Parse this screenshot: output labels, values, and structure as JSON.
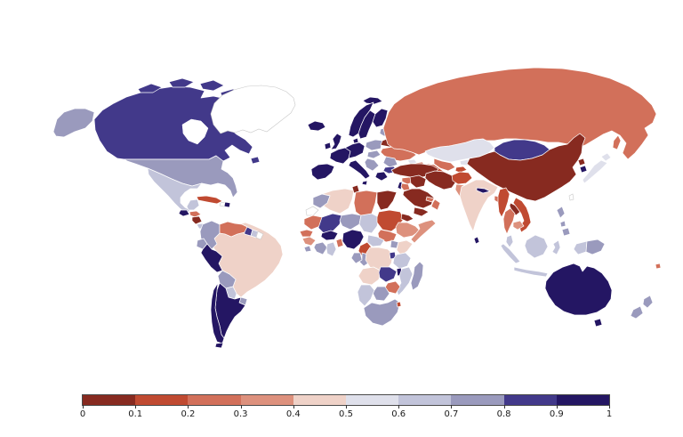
{
  "chart_data": {
    "type": "choropleth",
    "title": "",
    "description": "World map choropleth, values 0-1, diverging red-to-purple discrete scale, 10 bins, white = no data",
    "legend_position": "bottom",
    "no_data_color": "#ffffff",
    "colorbar": {
      "orientation": "horizontal",
      "ticks": [
        "0",
        "0.1",
        "0.2",
        "0.3",
        "0.4",
        "0.5",
        "0.6",
        "0.7",
        "0.8",
        "0.9",
        "1"
      ],
      "range": [
        0,
        1
      ],
      "bin_colors": [
        "#872a20",
        "#c04a31",
        "#d2705a",
        "#dd917d",
        "#efd2c8",
        "#dfe0eb",
        "#c2c4da",
        "#9a9abd",
        "#42398a",
        "#241663"
      ]
    },
    "regions": {
      "canada": {
        "name": "Canada",
        "value": 0.85
      },
      "usa": {
        "name": "United States",
        "value": 0.75
      },
      "greenland": {
        "name": "Greenland",
        "value": null
      },
      "mexico": {
        "name": "Mexico",
        "value": 0.65
      },
      "guatemala": {
        "name": "Guatemala",
        "value": 0.95
      },
      "honduras": {
        "name": "Honduras",
        "value": 0.25
      },
      "nicaragua": {
        "name": "Nicaragua",
        "value": 0.05
      },
      "costa_rica": {
        "name": "Costa Rica",
        "value": 0.65
      },
      "panama": {
        "name": "Panama",
        "value": 0.75
      },
      "cuba": {
        "name": "Cuba",
        "value": 0.15
      },
      "haiti": {
        "name": "Haiti",
        "value": null
      },
      "dominican_republic": {
        "name": "Dominican Republic",
        "value": 0.95
      },
      "colombia": {
        "name": "Colombia",
        "value": 0.75
      },
      "venezuela": {
        "name": "Venezuela",
        "value": 0.25
      },
      "guyana": {
        "name": "Guyana",
        "value": 0.85
      },
      "suriname": {
        "name": "Suriname",
        "value": 0.65
      },
      "french_guiana": {
        "name": "French Guiana",
        "value": null
      },
      "ecuador": {
        "name": "Ecuador",
        "value": 0.75
      },
      "peru": {
        "name": "Peru",
        "value": 0.95
      },
      "brazil": {
        "name": "Brazil",
        "value": 0.45
      },
      "bolivia": {
        "name": "Bolivia",
        "value": 0.75
      },
      "paraguay": {
        "name": "Paraguay",
        "value": 0.65
      },
      "uruguay": {
        "name": "Uruguay",
        "value": 0.75
      },
      "chile": {
        "name": "Chile",
        "value": 0.95
      },
      "argentina": {
        "name": "Argentina",
        "value": 0.95
      },
      "iceland": {
        "name": "Iceland",
        "value": 0.95
      },
      "svalbard": {
        "name": "Svalbard",
        "value": 0.95
      },
      "norway": {
        "name": "Norway",
        "value": 0.95
      },
      "sweden": {
        "name": "Sweden",
        "value": 0.95
      },
      "finland": {
        "name": "Finland",
        "value": 0.95
      },
      "denmark": {
        "name": "Denmark",
        "value": 0.95
      },
      "uk": {
        "name": "United Kingdom",
        "value": 0.95
      },
      "ireland": {
        "name": "Ireland",
        "value": 0.95
      },
      "france": {
        "name": "France",
        "value": 0.95
      },
      "iberia": {
        "name": "Spain & Portugal",
        "value": 0.95
      },
      "germany_central": {
        "name": "Germany & Central Europe",
        "value": 0.95
      },
      "italy": {
        "name": "Italy",
        "value": 0.95
      },
      "poland": {
        "name": "Poland",
        "value": 0.75
      },
      "baltics": {
        "name": "Baltic States",
        "value": 0.75
      },
      "belarus": {
        "name": "Belarus",
        "value": 0.05
      },
      "ukraine": {
        "name": "Ukraine",
        "value": 0.25
      },
      "romania": {
        "name": "Romania",
        "value": 0.75
      },
      "hungary_slovakia": {
        "name": "Hungary & Slovakia",
        "value": 0.75
      },
      "balkans": {
        "name": "Western Balkans",
        "value": 0.75
      },
      "bulgaria": {
        "name": "Bulgaria",
        "value": 0.85
      },
      "greece": {
        "name": "Greece",
        "value": 0.95
      },
      "russia": {
        "name": "Russia",
        "value": 0.25
      },
      "sakhalin": {
        "name": "Russia (Sakhalin)",
        "value": 0.25
      },
      "kazakhstan": {
        "name": "Kazakhstan",
        "value": 0.55
      },
      "uzbekistan": {
        "name": "Uzbekistan",
        "value": 0.25
      },
      "turkmenistan": {
        "name": "Turkmenistan",
        "value": 0.15
      },
      "kyrgyzstan": {
        "name": "Kyrgyzstan",
        "value": 0.55
      },
      "tajikistan": {
        "name": "Tajikistan",
        "value": 0.15
      },
      "georgia": {
        "name": "Georgia",
        "value": 0.55
      },
      "armenia": {
        "name": "Armenia",
        "value": 0.15
      },
      "azerbaijan": {
        "name": "Azerbaijan",
        "value": 0.25
      },
      "turkey": {
        "name": "Turkey",
        "value": 0.05
      },
      "syria": {
        "name": "Syria",
        "value": 0.25
      },
      "israel": {
        "name": "Israel",
        "value": 0.95
      },
      "jordan": {
        "name": "Jordan",
        "value": 0.25
      },
      "iraq": {
        "name": "Iraq",
        "value": 0.05
      },
      "saudi_arabia": {
        "name": "Saudi Arabia",
        "value": 0.05
      },
      "yemen": {
        "name": "Yemen",
        "value": 0.05
      },
      "oman": {
        "name": "Oman",
        "value": 0.25
      },
      "uae": {
        "name": "United Arab Emirates",
        "value": 0.25
      },
      "iran": {
        "name": "Iran",
        "value": 0.05
      },
      "afghanistan": {
        "name": "Afghanistan",
        "value": 0.15
      },
      "pakistan": {
        "name": "Pakistan",
        "value": 0.35
      },
      "india": {
        "name": "India",
        "value": 0.45
      },
      "nepal": {
        "name": "Nepal",
        "value": 0.95
      },
      "bangladesh": {
        "name": "Bangladesh",
        "value": 0.25
      },
      "sri_lanka": {
        "name": "Sri Lanka",
        "value": 0.95
      },
      "myanmar": {
        "name": "Myanmar",
        "value": 0.15
      },
      "thailand": {
        "name": "Thailand",
        "value": 0.25
      },
      "laos": {
        "name": "Laos",
        "value": 0.05
      },
      "cambodia": {
        "name": "Cambodia",
        "value": 0.35
      },
      "vietnam": {
        "name": "Vietnam",
        "value": 0.15
      },
      "china": {
        "name": "China",
        "value": 0.05
      },
      "mongolia": {
        "name": "Mongolia",
        "value": 0.85
      },
      "north_korea": {
        "name": "North Korea",
        "value": 0.05
      },
      "south_korea": {
        "name": "South Korea",
        "value": 0.95
      },
      "japan": {
        "name": "Japan",
        "value": 0.55
      },
      "taiwan": {
        "name": "Taiwan",
        "value": null
      },
      "philippines": {
        "name": "Philippines",
        "value": 0.75
      },
      "malaysia": {
        "name": "Malaysia",
        "value": 0.65
      },
      "indonesia": {
        "name": "Indonesia",
        "value": 0.65
      },
      "papua_new_guinea": {
        "name": "Papua New Guinea",
        "value": 0.75
      },
      "australia": {
        "name": "Australia",
        "value": 0.95
      },
      "new_zealand": {
        "name": "New Zealand",
        "value": 0.75
      },
      "fiji": {
        "name": "Fiji",
        "value": 0.25
      },
      "morocco": {
        "name": "Morocco",
        "value": 0.75
      },
      "western_sahara": {
        "name": "Western Sahara",
        "value": null
      },
      "algeria": {
        "name": "Algeria",
        "value": 0.45
      },
      "tunisia": {
        "name": "Tunisia",
        "value": 0.05
      },
      "libya": {
        "name": "Libya",
        "value": 0.25
      },
      "egypt": {
        "name": "Egypt",
        "value": 0.05
      },
      "mauritania": {
        "name": "Mauritania",
        "value": 0.25
      },
      "mali": {
        "name": "Mali",
        "value": 0.85
      },
      "niger": {
        "name": "Niger",
        "value": 0.75
      },
      "chad": {
        "name": "Chad",
        "value": 0.65
      },
      "sudan": {
        "name": "Sudan",
        "value": 0.15
      },
      "eritrea": {
        "name": "Eritrea",
        "value": 0.05
      },
      "ethiopia": {
        "name": "Ethiopia",
        "value": 0.35
      },
      "somalia": {
        "name": "Somalia",
        "value": 0.35
      },
      "south_sudan": {
        "name": "South Sudan",
        "value": 0.25
      },
      "senegal": {
        "name": "Senegal",
        "value": 0.25
      },
      "guinea": {
        "name": "Guinea",
        "value": 0.35
      },
      "sierra_leone": {
        "name": "Sierra Leone",
        "value": 0.75
      },
      "ivory_coast": {
        "name": "Côte d'Ivoire",
        "value": 0.75
      },
      "ghana": {
        "name": "Ghana",
        "value": 0.65
      },
      "burkina_faso": {
        "name": "Burkina Faso",
        "value": 0.95
      },
      "benin_togo": {
        "name": "Benin & Togo",
        "value": 0.25
      },
      "nigeria": {
        "name": "Nigeria",
        "value": 0.95
      },
      "cameroon": {
        "name": "Cameroon",
        "value": 0.15
      },
      "central_african_republic": {
        "name": "Central African Republic",
        "value": 0.65
      },
      "gabon": {
        "name": "Gabon",
        "value": 0.75
      },
      "congo": {
        "name": "Congo",
        "value": 0.75
      },
      "dr_congo": {
        "name": "DR Congo",
        "value": 0.45
      },
      "uganda": {
        "name": "Uganda",
        "value": 0.75
      },
      "kenya": {
        "name": "Kenya",
        "value": 0.45
      },
      "rwanda_burundi": {
        "name": "Rwanda & Burundi",
        "value": 0.85
      },
      "tanzania": {
        "name": "Tanzania",
        "value": 0.65
      },
      "angola": {
        "name": "Angola",
        "value": 0.45
      },
      "zambia": {
        "name": "Zambia",
        "value": 0.85
      },
      "malawi": {
        "name": "Malawi",
        "value": 0.95
      },
      "mozambique": {
        "name": "Mozambique",
        "value": 0.65
      },
      "zimbabwe": {
        "name": "Zimbabwe",
        "value": 0.25
      },
      "botswana": {
        "name": "Botswana",
        "value": 0.75
      },
      "namibia": {
        "name": "Namibia",
        "value": 0.65
      },
      "south_africa": {
        "name": "South Africa",
        "value": 0.75
      },
      "eswatini": {
        "name": "Eswatini",
        "value": 0.15
      },
      "madagascar": {
        "name": "Madagascar",
        "value": 0.75
      }
    }
  }
}
